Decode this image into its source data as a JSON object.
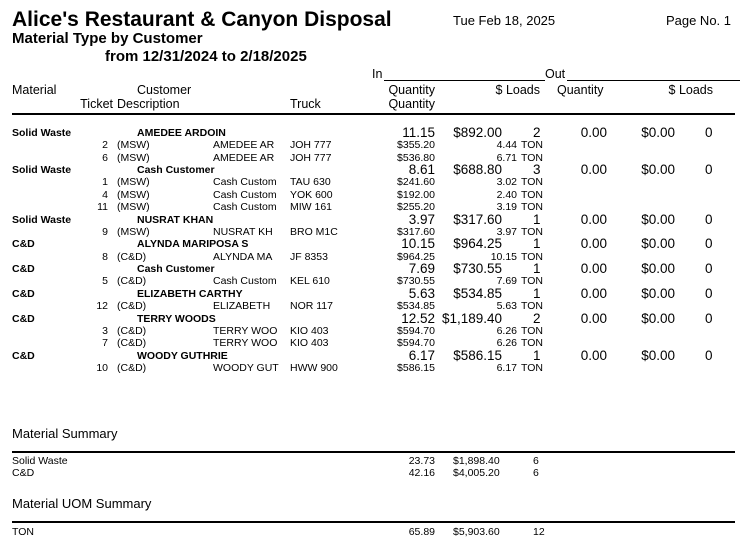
{
  "header": {
    "company": "Alice's Restaurant & Canyon Disposal",
    "report_title": "Material Type by Customer",
    "date_range": "from 12/31/2024 to 2/18/2025",
    "date": "Tue Feb 18, 2025",
    "page": "Page No. 1"
  },
  "columns": {
    "in": "In",
    "out": "Out",
    "material": "Material",
    "customer": "Customer",
    "ticket": "Ticket",
    "description": "Description",
    "truck": "Truck",
    "in_quantity": "Quantity",
    "in_quantity2": "Quantity",
    "in_loads": "$ Loads",
    "out_quantity": "Quantity",
    "out_loads": "$ Loads"
  },
  "groups": [
    {
      "material": "Solid Waste",
      "customer": "AMEDEE ARDOIN",
      "qty": "11.15",
      "amount": "$892.00",
      "loads": "2",
      "out_qty": "0.00",
      "out_amount": "$0.00",
      "out_loads": "0",
      "tickets": [
        {
          "ticket": "2",
          "code": "(MSW)",
          "desc": "AMEDEE AR",
          "truck": "JOH 777",
          "amount": "$355.20",
          "qty": "4.44",
          "uom": "TON"
        },
        {
          "ticket": "6",
          "code": "(MSW)",
          "desc": "AMEDEE AR",
          "truck": "JOH 777",
          "amount": "$536.80",
          "qty": "6.71",
          "uom": "TON"
        }
      ]
    },
    {
      "material": "Solid Waste",
      "customer": "Cash Customer",
      "qty": "8.61",
      "amount": "$688.80",
      "loads": "3",
      "out_qty": "0.00",
      "out_amount": "$0.00",
      "out_loads": "0",
      "tickets": [
        {
          "ticket": "1",
          "code": "(MSW)",
          "desc": "Cash Custom",
          "truck": "TAU 630",
          "amount": "$241.60",
          "qty": "3.02",
          "uom": "TON"
        },
        {
          "ticket": "4",
          "code": "(MSW)",
          "desc": "Cash Custom",
          "truck": "YOK 600",
          "amount": "$192.00",
          "qty": "2.40",
          "uom": "TON"
        },
        {
          "ticket": "11",
          "code": "(MSW)",
          "desc": "Cash Custom",
          "truck": "MIW 161",
          "amount": "$255.20",
          "qty": "3.19",
          "uom": "TON"
        }
      ]
    },
    {
      "material": "Solid Waste",
      "customer": "NUSRAT KHAN",
      "qty": "3.97",
      "amount": "$317.60",
      "loads": "1",
      "out_qty": "0.00",
      "out_amount": "$0.00",
      "out_loads": "0",
      "tickets": [
        {
          "ticket": "9",
          "code": "(MSW)",
          "desc": "NUSRAT KH",
          "truck": "BRO M1C",
          "amount": "$317.60",
          "qty": "3.97",
          "uom": "TON"
        }
      ]
    },
    {
      "material": "C&D",
      "customer": "ALYNDA MARIPOSA S",
      "qty": "10.15",
      "amount": "$964.25",
      "loads": "1",
      "out_qty": "0.00",
      "out_amount": "$0.00",
      "out_loads": "0",
      "tickets": [
        {
          "ticket": "8",
          "code": "(C&D)",
          "desc": "ALYNDA MA",
          "truck": "JF 8353",
          "amount": "$964.25",
          "qty": "10.15",
          "uom": "TON"
        }
      ]
    },
    {
      "material": "C&D",
      "customer": "Cash Customer",
      "qty": "7.69",
      "amount": "$730.55",
      "loads": "1",
      "out_qty": "0.00",
      "out_amount": "$0.00",
      "out_loads": "0",
      "tickets": [
        {
          "ticket": "5",
          "code": "(C&D)",
          "desc": "Cash Custom",
          "truck": "KEL 610",
          "amount": "$730.55",
          "qty": "7.69",
          "uom": "TON"
        }
      ]
    },
    {
      "material": "C&D",
      "customer": "ELIZABETH CARTHY",
      "qty": "5.63",
      "amount": "$534.85",
      "loads": "1",
      "out_qty": "0.00",
      "out_amount": "$0.00",
      "out_loads": "0",
      "tickets": [
        {
          "ticket": "12",
          "code": "(C&D)",
          "desc": "ELIZABETH",
          "truck": "NOR 117",
          "amount": "$534.85",
          "qty": "5.63",
          "uom": "TON"
        }
      ]
    },
    {
      "material": "C&D",
      "customer": "TERRY WOODS",
      "qty": "12.52",
      "amount": "$1,189.40",
      "loads": "2",
      "out_qty": "0.00",
      "out_amount": "$0.00",
      "out_loads": "0",
      "tickets": [
        {
          "ticket": "3",
          "code": "(C&D)",
          "desc": "TERRY WOO",
          "truck": "KIO 403",
          "amount": "$594.70",
          "qty": "6.26",
          "uom": "TON"
        },
        {
          "ticket": "7",
          "code": "(C&D)",
          "desc": "TERRY WOO",
          "truck": "KIO 403",
          "amount": "$594.70",
          "qty": "6.26",
          "uom": "TON"
        }
      ]
    },
    {
      "material": "C&D",
      "customer": "WOODY GUTHRIE",
      "qty": "6.17",
      "amount": "$586.15",
      "loads": "1",
      "out_qty": "0.00",
      "out_amount": "$0.00",
      "out_loads": "0",
      "tickets": [
        {
          "ticket": "10",
          "code": "(C&D)",
          "desc": "WOODY GUT",
          "truck": "HWW 900",
          "amount": "$586.15",
          "qty": "6.17",
          "uom": "TON"
        }
      ]
    }
  ],
  "material_summary": {
    "title": "Material Summary",
    "rows": [
      {
        "name": "Solid Waste",
        "qty": "23.73",
        "amount": "$1,898.40",
        "loads": "6"
      },
      {
        "name": "C&D",
        "qty": "42.16",
        "amount": "$4,005.20",
        "loads": "6"
      }
    ]
  },
  "uom_summary": {
    "title": "Material UOM Summary",
    "rows": [
      {
        "name": "TON",
        "qty": "65.89",
        "amount": "$5,903.60",
        "loads": "12"
      }
    ]
  }
}
